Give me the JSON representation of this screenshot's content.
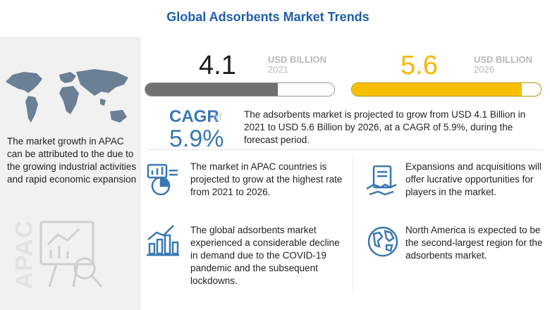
{
  "title": "Global Adsorbents Market Trends",
  "left_panel": {
    "text": "The market growth in APAC can be attributed to the due to the growing industrial activities and rapid economic expansion",
    "region_label": "APAC"
  },
  "metric_2021": {
    "value": "4.1",
    "unit": "USD BILLION",
    "year": "2021",
    "bar_fill_fraction": 0.7
  },
  "metric_2026": {
    "value": "5.6",
    "unit": "USD BILLION",
    "year": "2026",
    "bar_fill_fraction": 0.9
  },
  "cagr": {
    "label": "CAGR",
    "of": "of",
    "value": "5.9%"
  },
  "summary": "The adsorbents market is projected to grow from USD 4.1 Billion in 2021 to USD 5.6 Billion by 2026, at a CAGR of 5.9%, during the forecast period.",
  "insights": [
    {
      "icon": "growth-chart-icon",
      "text": "The market in APAC countries is projected to grow at the highest rate from 2021 to 2026."
    },
    {
      "icon": "handshake-document-icon",
      "text": "Expansions and acquisitions will offer lucrative opportunities for players in the market."
    },
    {
      "icon": "declining-bars-icon",
      "text": "The global adsorbents market experienced a considerable decline in demand due to the COVID-19 pandemic and the subsequent lockdowns."
    },
    {
      "icon": "globe-icon",
      "text": "North America is expected to be the second-largest region for the adsorbents market."
    }
  ],
  "colors": {
    "title": "#1f5fa8",
    "accent_blue": "#3a78b5",
    "accent_yellow": "#f5bf00",
    "bar_gray": "#707070"
  }
}
